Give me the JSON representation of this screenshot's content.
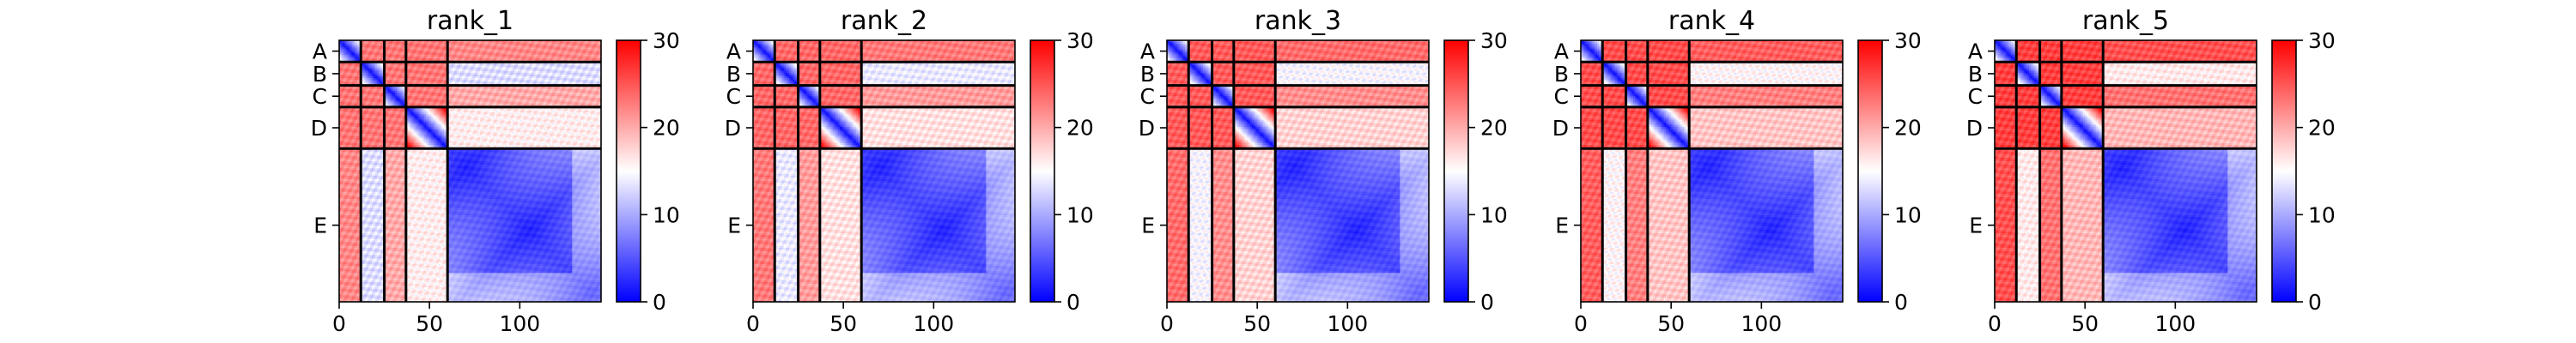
{
  "chart_data": {
    "type": "heatmap",
    "colormap": {
      "low": "#0000ff",
      "mid": "#ffffff",
      "high": "#ff0000"
    },
    "vmin": 0,
    "vmax": 30,
    "colorbar_ticks": [
      0,
      10,
      20,
      30
    ],
    "x_ticks": [
      0,
      50,
      100
    ],
    "chain_boundaries": [
      12,
      25,
      37,
      60
    ],
    "total_residues": 145,
    "chains": [
      "A",
      "B",
      "C",
      "D",
      "E"
    ],
    "chain_label_centers": [
      6,
      18.5,
      31,
      48.5,
      102.5
    ],
    "panels": [
      {
        "title": "rank_1",
        "variant": 0
      },
      {
        "title": "rank_2",
        "variant": 1
      },
      {
        "title": "rank_3",
        "variant": 2
      },
      {
        "title": "rank_4",
        "variant": 3
      },
      {
        "title": "rank_5",
        "variant": 4
      }
    ]
  }
}
